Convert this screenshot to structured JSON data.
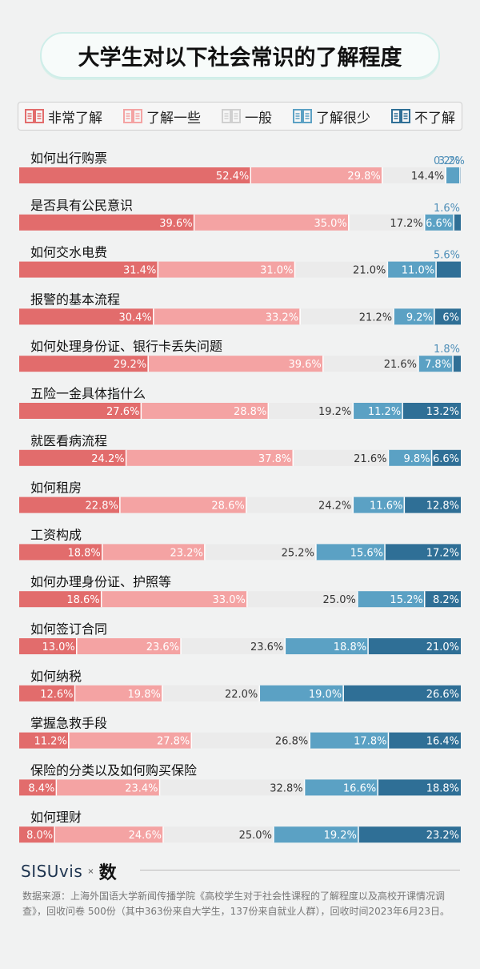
{
  "title": "大学生对以下社会常识的了解程度",
  "legend": [
    {
      "label": "非常了解",
      "color": "#e26c6c"
    },
    {
      "label": "了解一些",
      "color": "#f4a3a3"
    },
    {
      "label": "一般",
      "color": "#d0d0d0"
    },
    {
      "label": "了解很少",
      "color": "#5ba1c4"
    },
    {
      "label": "不了解",
      "color": "#2f6f96"
    }
  ],
  "chart_data": {
    "type": "bar",
    "orientation": "horizontal",
    "stacked": true,
    "segment_colors": [
      "#e26c6c",
      "#f4a3a3",
      "#ebebeb",
      "#5ba1c4",
      "#2f6f96"
    ],
    "categories": [
      "如何出行购票",
      "是否具有公民意识",
      "如何交水电费",
      "报警的基本流程",
      "如何处理身份证、银行卡丢失问题",
      "五险一金具体指什么",
      "就医看病流程",
      "如何租房",
      "工资构成",
      "如何办理身份证、护照等",
      "如何签订合同",
      "如何纳税",
      "掌握急救手段",
      "保险的分类以及如何购买保险",
      "如何理财"
    ],
    "series": [
      {
        "name": "非常了解",
        "values": [
          52.4,
          39.6,
          31.4,
          30.4,
          29.2,
          27.6,
          24.2,
          22.8,
          18.8,
          18.6,
          13.0,
          12.6,
          11.2,
          8.4,
          8.0
        ]
      },
      {
        "name": "了解一些",
        "values": [
          29.8,
          35.0,
          31.0,
          33.2,
          39.6,
          28.8,
          37.8,
          28.6,
          23.2,
          33.0,
          23.6,
          19.8,
          27.8,
          23.4,
          24.6
        ]
      },
      {
        "name": "一般",
        "values": [
          14.4,
          17.2,
          21.0,
          21.2,
          21.6,
          19.2,
          21.6,
          24.2,
          25.2,
          25.0,
          23.6,
          22.0,
          26.8,
          32.8,
          25.0
        ]
      },
      {
        "name": "了解很少",
        "values": [
          3.2,
          6.6,
          11.0,
          9.2,
          7.8,
          11.2,
          9.8,
          11.6,
          15.6,
          15.2,
          18.8,
          19.0,
          17.8,
          16.6,
          19.2
        ]
      },
      {
        "name": "不了解",
        "values": [
          0.2,
          1.6,
          5.6,
          6.0,
          1.8,
          13.2,
          6.6,
          12.8,
          17.2,
          8.2,
          21.0,
          26.6,
          16.4,
          18.8,
          23.2
        ]
      }
    ],
    "labels": [
      [
        "52.4%",
        "29.8%",
        "14.4%",
        "3.2%",
        "0.2%"
      ],
      [
        "39.6%",
        "35.0%",
        "17.2%",
        "6.6%",
        "1.6%"
      ],
      [
        "31.4%",
        "31.0%",
        "21.0%",
        "11.0%",
        "5.6%"
      ],
      [
        "30.4%",
        "33.2%",
        "21.2%",
        "9.2%",
        "6%"
      ],
      [
        "29.2%",
        "39.6%",
        "21.6%",
        "7.8%",
        "1.8%"
      ],
      [
        "27.6%",
        "28.8%",
        "19.2%",
        "11.2%",
        "13.2%"
      ],
      [
        "24.2%",
        "37.8%",
        "21.6%",
        "9.8%",
        "6.6%"
      ],
      [
        "22.8%",
        "28.6%",
        "24.2%",
        "11.6%",
        "12.8%"
      ],
      [
        "18.8%",
        "23.2%",
        "25.2%",
        "15.6%",
        "17.2%"
      ],
      [
        "18.6%",
        "33.0%",
        "25.0%",
        "15.2%",
        "8.2%"
      ],
      [
        "13.0%",
        "23.6%",
        "23.6%",
        "18.8%",
        "21.0%"
      ],
      [
        "12.6%",
        "19.8%",
        "22.0%",
        "19.0%",
        "26.6%"
      ],
      [
        "11.2%",
        "27.8%",
        "26.8%",
        "17.8%",
        "16.4%"
      ],
      [
        "8.4%",
        "23.4%",
        "32.8%",
        "16.6%",
        "18.8%"
      ],
      [
        "8.0%",
        "24.6%",
        "25.0%",
        "19.2%",
        "23.2%"
      ]
    ]
  },
  "branding": {
    "logo": "SISUvis",
    "x": "×",
    "partner": "数"
  },
  "source": "数据来源：上海外国语大学新闻传播学院《高校学生对于社会性课程的了解程度以及高校开课情况调查》，回收问卷 500份（其中363份来自大学生，137份来自就业人群），回收时间2023年6月23日。"
}
